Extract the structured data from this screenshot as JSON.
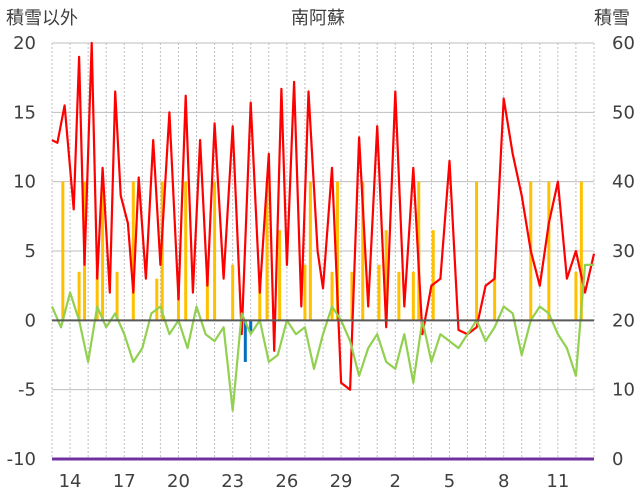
{
  "chart_data": {
    "type": "line",
    "title": "南阿蘇",
    "ylabel_left": "積雪以外",
    "ylabel_right": "積雪",
    "ylim_left": [
      -10,
      20
    ],
    "ylim_right": [
      0,
      60
    ],
    "yticks_left": [
      "20",
      "15",
      "10",
      "5",
      "0",
      "-5",
      "-10"
    ],
    "yticks_right": [
      "60",
      "50",
      "40",
      "30",
      "20",
      "10",
      "0"
    ],
    "xtick_labels": [
      "14",
      "17",
      "20",
      "23",
      "26",
      "29",
      "2",
      "5",
      "8",
      "11"
    ],
    "x_days": 30,
    "grid": true,
    "series": [
      {
        "kind": "line",
        "axis": "left",
        "color": "#ff0000",
        "x": [
          0.0,
          0.3,
          0.7,
          1.2,
          1.5,
          1.8,
          2.2,
          2.5,
          2.8,
          3.2,
          3.5,
          3.8,
          4.2,
          4.5,
          4.8,
          5.2,
          5.6,
          6.0,
          6.5,
          7.0,
          7.4,
          7.8,
          8.2,
          8.6,
          9.0,
          9.5,
          10.0,
          10.5,
          11.0,
          11.5,
          12.0,
          12.3,
          12.7,
          13.0,
          13.4,
          13.8,
          14.2,
          14.7,
          15.0,
          15.5,
          16.0,
          16.5,
          17.0,
          17.5,
          18.0,
          18.5,
          19.0,
          19.5,
          20.0,
          20.5,
          21.0,
          21.5,
          22.0,
          22.5,
          23.0,
          23.5,
          24.0,
          24.5,
          25.0,
          25.5,
          26.0,
          26.5,
          27.0,
          27.5,
          28.0,
          28.5,
          29.0,
          29.5,
          30.0
        ],
        "y": [
          13,
          12.8,
          15.5,
          8,
          19,
          4,
          20,
          3,
          11,
          2,
          16.5,
          9,
          7,
          2,
          10.3,
          3,
          13,
          4,
          15,
          1.5,
          16.2,
          2,
          13,
          2.5,
          14.2,
          3,
          14,
          -1,
          15.7,
          2,
          12,
          -2.2,
          16.7,
          4,
          17.2,
          1,
          16.5,
          5,
          2.3,
          11,
          -4.5,
          -5,
          13.2,
          1,
          14,
          -0.5,
          16.5,
          1,
          11,
          -1,
          2.5,
          3,
          11.5,
          -0.7,
          -1,
          -0.5,
          2.5,
          3,
          16,
          12,
          9,
          5,
          2.5,
          7,
          10,
          3,
          5,
          2,
          4.8
        ]
      },
      {
        "kind": "line",
        "axis": "left",
        "color": "#92d050",
        "x": [
          0.0,
          0.5,
          1.0,
          1.5,
          2.0,
          2.5,
          3.0,
          3.5,
          4.0,
          4.5,
          5.0,
          5.5,
          6.0,
          6.5,
          7.0,
          7.5,
          8.0,
          8.5,
          9.0,
          9.5,
          10.0,
          10.5,
          11.0,
          11.5,
          12.0,
          12.5,
          13.0,
          13.5,
          14.0,
          14.5,
          15.0,
          15.5,
          16.0,
          16.5,
          17.0,
          17.5,
          18.0,
          18.5,
          19.0,
          19.5,
          20.0,
          20.5,
          21.0,
          21.5,
          22.0,
          22.5,
          23.0,
          23.5,
          24.0,
          24.5,
          25.0,
          25.5,
          26.0,
          26.5,
          27.0,
          27.5,
          28.0,
          28.5,
          29.0,
          29.5,
          30.0
        ],
        "y": [
          1,
          -0.5,
          2,
          0,
          -3,
          1,
          -0.5,
          0.5,
          -1,
          -3,
          -2,
          0.5,
          1,
          -1,
          0,
          -2,
          1,
          -1,
          -1.5,
          -0.5,
          -6.5,
          0.5,
          -1,
          0,
          -3,
          -2.5,
          0,
          -1,
          -0.5,
          -3.5,
          -1,
          1,
          0,
          -1.5,
          -4,
          -2,
          -1,
          -3,
          -3.5,
          -1,
          -4.5,
          0,
          -3,
          -1,
          -1.5,
          -2,
          -1,
          0,
          -1.5,
          -0.5,
          1,
          0.5,
          -2.5,
          0,
          1,
          0.5,
          -1,
          -2,
          -4,
          4,
          4
        ]
      }
    ],
    "bars": [
      {
        "axis": "right",
        "color": "#ffc000",
        "x": [
          0.6,
          1.5,
          1.8,
          2.5,
          2.8,
          3.6,
          4.5,
          5.8,
          6.1,
          7.0,
          7.4,
          8.6,
          9.0,
          10.0,
          11.5,
          11.9,
          12.6,
          14.0,
          14.3,
          15.5,
          15.8,
          16.6,
          17.2,
          18.1,
          18.5,
          19.2,
          20.0,
          20.3,
          21.1,
          23.5,
          24.5,
          26.5,
          27.5,
          29.0,
          29.3
        ],
        "y": [
          40,
          27,
          40,
          27,
          40,
          27,
          40,
          26,
          40,
          27,
          40,
          27,
          40,
          28,
          27,
          40,
          33,
          28,
          40,
          27,
          40,
          27,
          40,
          28,
          33,
          27,
          27,
          40,
          33,
          40,
          27,
          40,
          40,
          27,
          40
        ]
      },
      {
        "axis": "left",
        "color": "#0070c0",
        "x": [
          10.7,
          11.0
        ],
        "y": [
          -3,
          -0.8
        ]
      }
    ]
  }
}
